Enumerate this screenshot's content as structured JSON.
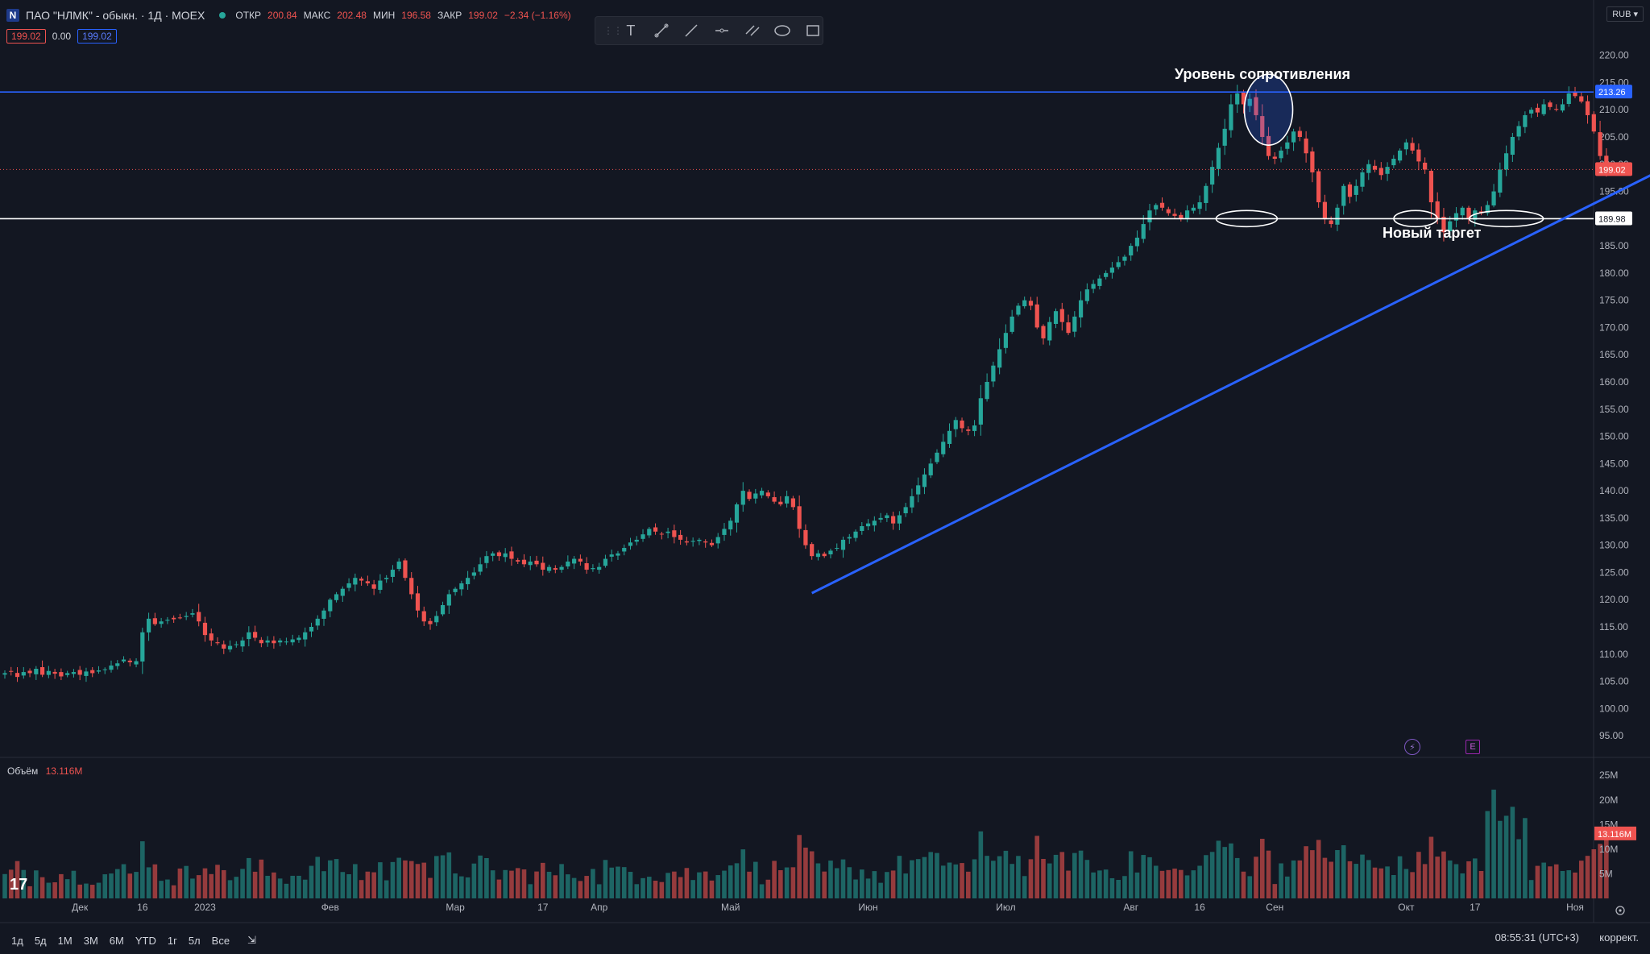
{
  "header": {
    "symbol_icon": "N",
    "title": "ПАО \"НЛМК\" - обыкн. · 1Д · MOEX",
    "open_label": "ОТКР",
    "open_value": "200.84",
    "high_label": "МАКС",
    "high_value": "202.48",
    "low_label": "МИН",
    "low_value": "196.58",
    "close_label": "ЗАКР",
    "close_value": "199.02",
    "change": "−2.34 (−1.16%)",
    "price_red": "199.02",
    "price_zero": "0.00",
    "price_blue": "199.02"
  },
  "currency": "RUB",
  "toolbar": {
    "icons": [
      "text-tool-icon",
      "trend-line-icon",
      "line-icon",
      "horizontal-ray-icon",
      "parallel-channel-icon",
      "ellipse-icon",
      "rectangle-icon"
    ]
  },
  "volume": {
    "label": "Объём",
    "value": "13.116M",
    "axis_ticks": [
      "25M",
      "20M",
      "15M",
      "10M",
      "5M"
    ],
    "last_label": "13.116M"
  },
  "chart_data": {
    "type": "candlestick",
    "title": "",
    "price_axis": {
      "ticks": [
        95,
        100,
        105,
        110,
        115,
        120,
        125,
        130,
        135,
        140,
        145,
        150,
        155,
        160,
        165,
        170,
        175,
        180,
        185,
        190,
        195,
        200,
        205,
        210,
        215,
        220
      ],
      "ylim": [
        92.5,
        223.5
      ]
    },
    "time_axis": {
      "labels": [
        "Дек",
        "16",
        "2023",
        "Фев",
        "Мар",
        "17",
        "Апр",
        "Май",
        "Июн",
        "Июл",
        "Авг",
        "16",
        "Сен",
        "Окт",
        "17",
        "Ноя",
        "16"
      ]
    },
    "levels": [
      {
        "name": "Уровень сопротивления",
        "price": 213.26,
        "label": "213.26",
        "color": "#2962ff"
      },
      {
        "name": "Новый таргет",
        "price": 189.98,
        "label": "189.98",
        "color": "#ffffff"
      },
      {
        "name": "last",
        "price": 199.02,
        "label": "199.02",
        "color": "#ef5350"
      }
    ],
    "annotations": [
      "Уровень сопротивления",
      "Новый таргет"
    ],
    "trendline": {
      "from": {
        "index": 129,
        "price": 121.2
      },
      "to": {
        "index": 278,
        "price": 206.5
      }
    },
    "closes": [
      106.5,
      106.8,
      105.8,
      106.7,
      106.5,
      107.3,
      106.2,
      106.9,
      106.4,
      105.9,
      106.5,
      106.7,
      106.2,
      106.8,
      106.5,
      107.0,
      107.2,
      107.9,
      108.3,
      109.0,
      108.5,
      108.7,
      114.0,
      116.5,
      115.5,
      116.0,
      116.3,
      116.4,
      116.7,
      117.0,
      117.5,
      116.0,
      113.5,
      112.5,
      112.0,
      111.0,
      111.5,
      111.8,
      112.5,
      114.0,
      113.0,
      112.0,
      112.5,
      112.0,
      112.5,
      112.3,
      112.7,
      113.0,
      114.0,
      115.0,
      116.5,
      118.0,
      120.0,
      121.0,
      122.0,
      123.0,
      124.0,
      123.5,
      123.0,
      122.0,
      123.5,
      124.0,
      125.5,
      127.0,
      124.0,
      121.0,
      118.0,
      116.0,
      115.5,
      117.0,
      119.0,
      121.0,
      122.0,
      123.0,
      124.0,
      125.0,
      126.5,
      128.0,
      128.5,
      128.0,
      128.5,
      127.5,
      127.0,
      126.5,
      127.0,
      126.5,
      125.5,
      126.0,
      125.5,
      126.0,
      127.0,
      127.5,
      127.0,
      125.5,
      125.8,
      126.0,
      127.5,
      128.3,
      128.5,
      129.5,
      130.5,
      131.0,
      132.0,
      133.0,
      132.5,
      132.0,
      132.5,
      131.5,
      131.0,
      130.5,
      130.8,
      131.0,
      130.5,
      130.0,
      131.5,
      133.0,
      134.5,
      137.5,
      140.0,
      138.5,
      139.5,
      140.0,
      139.0,
      138.0,
      137.5,
      139.0,
      137.0,
      133.0,
      130.0,
      128.0,
      128.5,
      128.0,
      129.0,
      129.5,
      131.0,
      131.5,
      132.5,
      133.5,
      134.0,
      134.5,
      135.0,
      135.5,
      134.0,
      135.5,
      137.0,
      139.0,
      141.0,
      143.0,
      145.0,
      147.0,
      149.0,
      151.0,
      153.0,
      151.5,
      151.0,
      152.0,
      157.0,
      160.0,
      163.0,
      166.0,
      169.0,
      172.0,
      174.0,
      175.0,
      174.0,
      170.0,
      168.0,
      171.0,
      173.0,
      171.0,
      169.0,
      172.0,
      175.0,
      177.0,
      178.0,
      179.0,
      180.0,
      181.0,
      182.0,
      183.0,
      185.0,
      186.5,
      189.0,
      191.5,
      192.5,
      192.0,
      191.0,
      190.5,
      190.0,
      191.5,
      192.0,
      193.0,
      196.0,
      199.5,
      203.0,
      206.5,
      211.0,
      213.0,
      211.0,
      212.0,
      209.0,
      205.0,
      201.5,
      201.0,
      202.5,
      204.0,
      206.0,
      205.0,
      202.0,
      198.5,
      193.0,
      190.0,
      189.0,
      192.0,
      196.0,
      194.0,
      196.0,
      198.5,
      200.0,
      199.0,
      198.0,
      199.5,
      201.0,
      202.5,
      204.0,
      202.5,
      200.5,
      199.0,
      193.0,
      190.0,
      187.5,
      189.5,
      191.0,
      192.0,
      190.0,
      191.5,
      191.0,
      192.5,
      195.0,
      199.0,
      202.0,
      205.0,
      207.0,
      209.0,
      210.0,
      209.5,
      211.0,
      210.5,
      210.0,
      211.0,
      213.0,
      212.5,
      211.5,
      209.0,
      206.0,
      201.5,
      199.02
    ]
  }
}
